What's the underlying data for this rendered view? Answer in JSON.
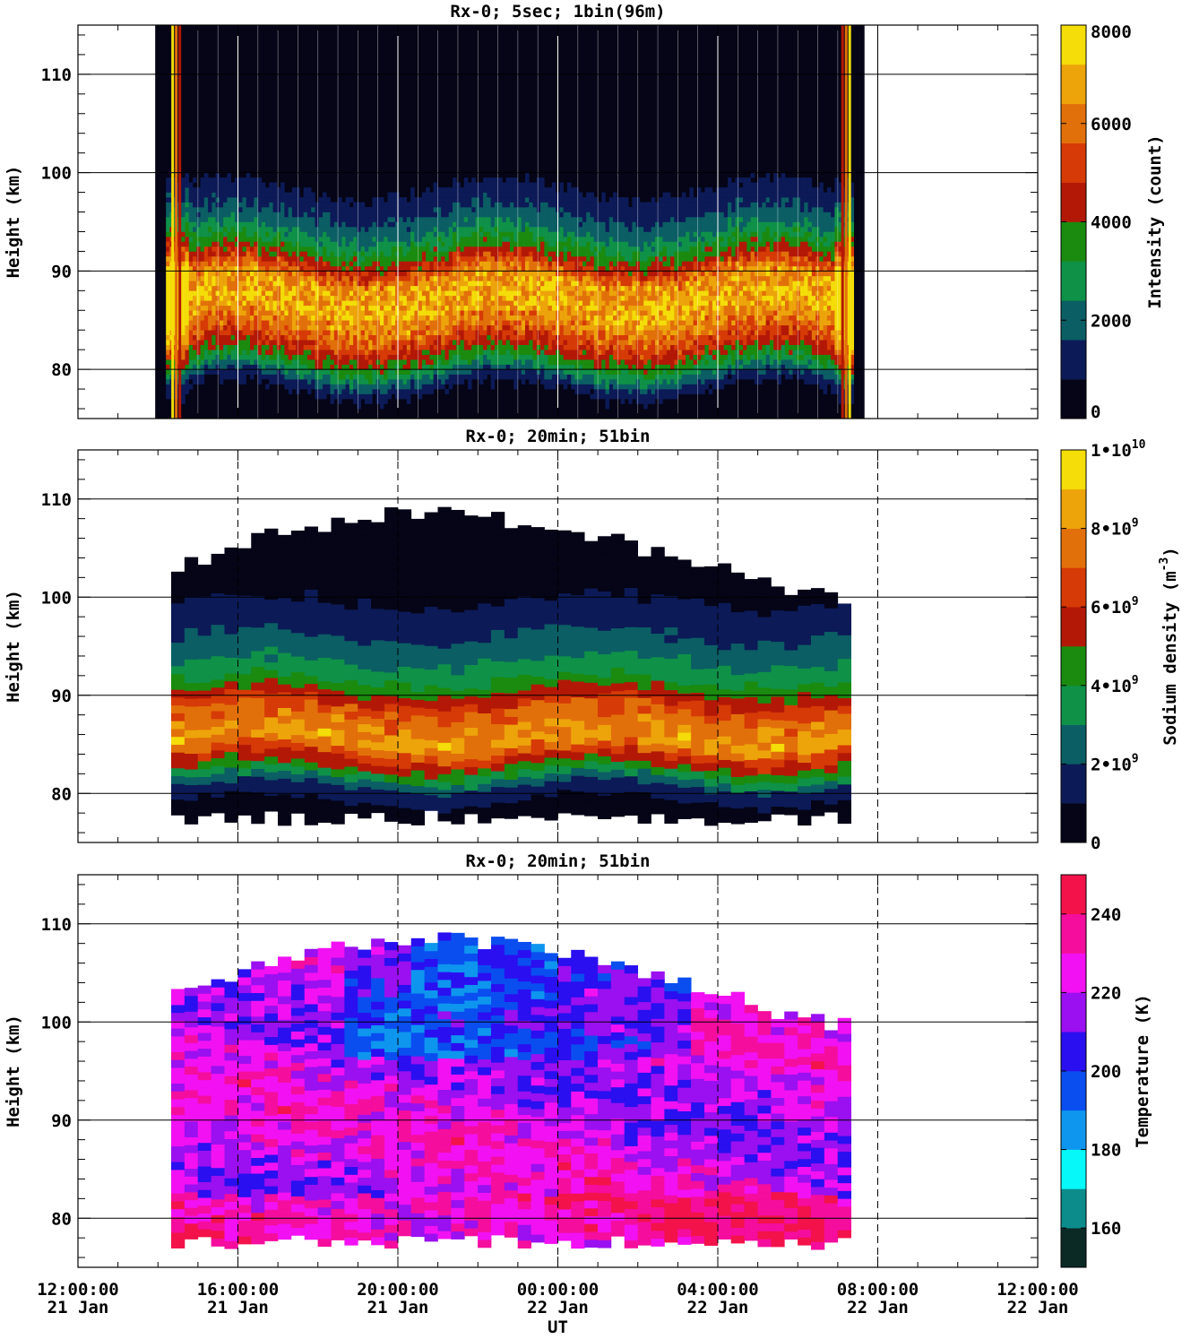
{
  "chart_data": [
    {
      "type": "heatmap",
      "title": "Rx-0;  5sec; 1bin(96m)",
      "ylabel": "Height (km)",
      "ylim": [
        75,
        115
      ],
      "y_ticks": [
        "80",
        "90",
        "100",
        "110"
      ],
      "x_range_hours": [
        0,
        24
      ],
      "data_time_range_hours": [
        2.2,
        19.4
      ],
      "colorbar": {
        "label": "Intensity (count)",
        "range": [
          0,
          8000
        ],
        "ticks": [
          "0",
          "2000",
          "4000",
          "6000",
          "8000"
        ],
        "colors": [
          "#050517",
          "#0c1a57",
          "#0b5e64",
          "#0f9148",
          "#1a8b0f",
          "#b31807",
          "#d63a06",
          "#e2700a",
          "#eda40a",
          "#f4dd08"
        ]
      },
      "profile": [
        {
          "h": 75,
          "v": 200
        },
        {
          "h": 78,
          "v": 900
        },
        {
          "h": 80,
          "v": 3000
        },
        {
          "h": 83,
          "v": 5500
        },
        {
          "h": 86,
          "v": 7000
        },
        {
          "h": 89,
          "v": 6500
        },
        {
          "h": 91,
          "v": 4200
        },
        {
          "h": 94,
          "v": 2200
        },
        {
          "h": 97,
          "v": 1100
        },
        {
          "h": 100,
          "v": 300
        },
        {
          "h": 115,
          "v": 100
        }
      ],
      "gridlines_x_hours": [
        4,
        8,
        12,
        16,
        20
      ],
      "dashed_x": false
    },
    {
      "type": "heatmap",
      "title": "Rx-0; 20min; 51bin",
      "ylabel": "Height (km)",
      "ylim": [
        75,
        115
      ],
      "y_ticks": [
        "80",
        "90",
        "100",
        "110"
      ],
      "x_range_hours": [
        0,
        24
      ],
      "data_time_range_hours": [
        2.33,
        19.33
      ],
      "colorbar": {
        "label": "Sodium density (m",
        "label_exp": "-3",
        "label_close": ")",
        "range": [
          0,
          10000000000
        ],
        "ticks": [
          {
            "base": "0",
            "exp": ""
          },
          {
            "base": "2•10",
            "exp": "9"
          },
          {
            "base": "4•10",
            "exp": "9"
          },
          {
            "base": "6•10",
            "exp": "9"
          },
          {
            "base": "8•10",
            "exp": "9"
          },
          {
            "base": "1•10",
            "exp": "10"
          }
        ],
        "colors": [
          "#050517",
          "#0c1a57",
          "#0b5e64",
          "#0f9148",
          "#1a8b0f",
          "#b31807",
          "#d63a06",
          "#e2700a",
          "#eda40a",
          "#f4dd08"
        ]
      },
      "profile": [
        {
          "h": 77,
          "v": 0.2
        },
        {
          "h": 80,
          "v": 1.5
        },
        {
          "h": 82,
          "v": 4.5
        },
        {
          "h": 85,
          "v": 8.5
        },
        {
          "h": 88,
          "v": 7.0
        },
        {
          "h": 91,
          "v": 4.0
        },
        {
          "h": 94,
          "v": 2.5
        },
        {
          "h": 98,
          "v": 1.3
        },
        {
          "h": 102,
          "v": 0.3
        },
        {
          "h": 111,
          "v": 0.1
        }
      ],
      "gridlines_x_hours": [
        4,
        8,
        12,
        16,
        20
      ],
      "dashed_x": true
    },
    {
      "type": "heatmap",
      "title": "Rx-0; 20min; 51bin",
      "ylabel": "Height (km)",
      "xlabel": "UT",
      "ylim": [
        75,
        115
      ],
      "y_ticks": [
        "80",
        "90",
        "100",
        "110"
      ],
      "x_range_hours": [
        0,
        24
      ],
      "data_time_range_hours": [
        2.33,
        19.33
      ],
      "colorbar": {
        "label": "Temperature (K)",
        "range": [
          150,
          250
        ],
        "ticks": [
          "160",
          "180",
          "200",
          "220",
          "240"
        ],
        "colors": [
          "#0b2a26",
          "#0d8c8c",
          "#06f8f8",
          "#0e96ef",
          "#0a4ef0",
          "#2a0ff0",
          "#9a10f0",
          "#f211f2",
          "#f50d9e",
          "#f3124a"
        ]
      },
      "gridlines_x_hours": [
        4,
        8,
        12,
        16,
        20
      ],
      "dashed_x": true
    }
  ],
  "x_axis": {
    "label": "UT",
    "ticks": [
      {
        "hour": 0,
        "time": "12:00:00",
        "date": "21 Jan"
      },
      {
        "hour": 4,
        "time": "16:00:00",
        "date": "21 Jan"
      },
      {
        "hour": 8,
        "time": "20:00:00",
        "date": "21 Jan"
      },
      {
        "hour": 12,
        "time": "00:00:00",
        "date": "22 Jan"
      },
      {
        "hour": 16,
        "time": "04:00:00",
        "date": "22 Jan"
      },
      {
        "hour": 20,
        "time": "08:00:00",
        "date": "22 Jan"
      },
      {
        "hour": 24,
        "time": "12:00:00",
        "date": "22 Jan"
      }
    ]
  }
}
